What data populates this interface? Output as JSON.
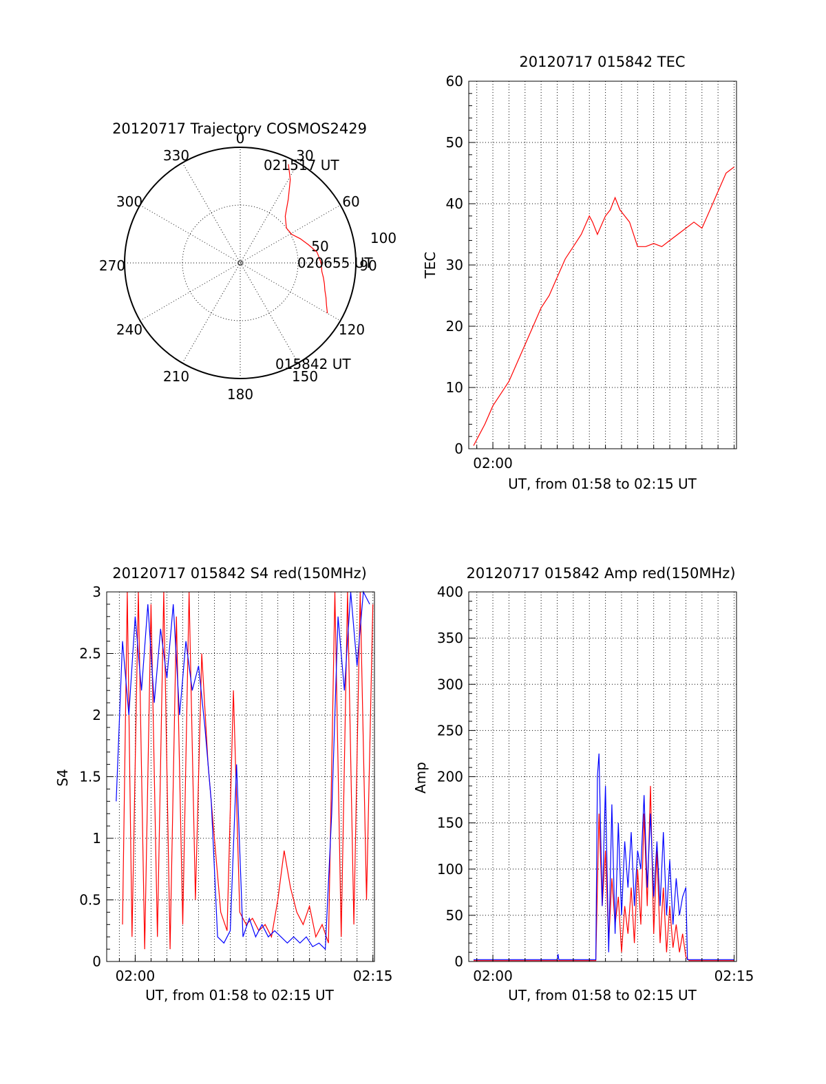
{
  "chart_data": [
    {
      "type": "polar",
      "title": "20120717 Trajectory COSMOS2429",
      "azimuth_labels": [
        "0",
        "30",
        "60",
        "90",
        "120",
        "150",
        "180",
        "210",
        "240",
        "270",
        "300",
        "330"
      ],
      "radial_labels": [
        "50",
        "100"
      ],
      "series": [
        {
          "color": "#ff0000",
          "points": [
            [
              26,
              95
            ],
            [
              31,
              84
            ],
            [
              37,
              69
            ],
            [
              44,
              56
            ],
            [
              53,
              50
            ],
            [
              61,
              51
            ],
            [
              68,
              56
            ],
            [
              75,
              61
            ],
            [
              82,
              67
            ],
            [
              90,
              70
            ],
            [
              96,
              71
            ],
            [
              100,
              73
            ],
            [
              104,
              75
            ],
            [
              108,
              77
            ],
            [
              112,
              80
            ],
            [
              116,
              83
            ],
            [
              120,
              87
            ]
          ]
        }
      ],
      "annotations": [
        "021517 UT",
        "020655 UT",
        "015842 UT"
      ]
    },
    {
      "type": "line",
      "title": "20120717 015842 TEC",
      "xlabel": "UT, from 01:58 to 02:15 UT",
      "ylabel": "TEC",
      "xlim": [
        -1.5,
        15.15
      ],
      "ylim": [
        0,
        60
      ],
      "x_ticks": [
        {
          "x": 0,
          "label": "02:00"
        }
      ],
      "y_ticks": [
        "0",
        "10",
        "20",
        "30",
        "40",
        "50",
        "60"
      ],
      "series": [
        {
          "color": "#ff0000",
          "x": [
            -1.2,
            -0.9,
            -0.5,
            0,
            0.5,
            1,
            1.5,
            2,
            2.5,
            3,
            3.5,
            4,
            4.5,
            5,
            5.5,
            6,
            6.2,
            6.5,
            7,
            7.3,
            7.6,
            7.9,
            8.2,
            8.5,
            9,
            9.5,
            10,
            10.5,
            11,
            11.5,
            12,
            12.5,
            13,
            13.5,
            14,
            14.5,
            15
          ],
          "y": [
            0.5,
            2,
            4,
            7,
            9,
            11,
            14,
            17,
            20,
            23,
            25,
            28,
            31,
            33,
            35,
            38,
            37,
            35,
            38,
            39,
            41,
            39,
            38,
            37,
            33,
            33,
            33.5,
            33,
            34,
            35,
            36,
            37,
            36,
            39,
            42,
            45,
            46
          ]
        }
      ]
    },
    {
      "type": "line",
      "title": "20120717 015842 S4 red(150MHz)",
      "xlabel": "UT, from 01:58 to 02:15 UT",
      "ylabel": "S4",
      "xlim": [
        -1.8,
        15.1
      ],
      "ylim": [
        0,
        3
      ],
      "x_ticks": [
        {
          "x": 0,
          "label": "02:00"
        },
        {
          "x": 15,
          "label": "02:15"
        }
      ],
      "y_ticks": [
        "0",
        "0.5",
        "1",
        "1.5",
        "2",
        "2.5",
        "3"
      ],
      "series": [
        {
          "color": "#ff0000",
          "x": [
            -0.8,
            -0.5,
            -0.2,
            0.2,
            0.6,
            1.0,
            1.4,
            1.8,
            2.2,
            2.6,
            3.0,
            3.4,
            3.8,
            4.2,
            4.6,
            5.0,
            5.4,
            5.8,
            6.2,
            6.6,
            7.0,
            7.4,
            7.8,
            8.2,
            8.6,
            9.0,
            9.4,
            9.8,
            10.2,
            10.6,
            11.0,
            11.4,
            11.8,
            12.2,
            12.6,
            13.0,
            13.4,
            13.8,
            14.2,
            14.6,
            15.0
          ],
          "y": [
            0.3,
            3,
            0.2,
            3,
            0.1,
            2.9,
            0.2,
            3,
            0.1,
            2.8,
            0.3,
            3,
            0.5,
            2.5,
            1.6,
            1.0,
            0.4,
            0.25,
            2.2,
            0.4,
            0.3,
            0.35,
            0.25,
            0.3,
            0.2,
            0.5,
            0.9,
            0.6,
            0.4,
            0.3,
            0.45,
            0.2,
            0.3,
            0.15,
            3,
            0.2,
            3,
            0.3,
            3,
            0.5,
            2.9
          ]
        },
        {
          "color": "#0000ff",
          "x": [
            -1.2,
            -0.8,
            -0.4,
            0,
            0.4,
            0.8,
            1.2,
            1.6,
            2.0,
            2.4,
            2.8,
            3.2,
            3.6,
            4.0,
            4.4,
            4.8,
            5.2,
            5.6,
            6.0,
            6.4,
            6.8,
            7.2,
            7.6,
            8.0,
            8.4,
            8.8,
            9.2,
            9.6,
            10.0,
            10.4,
            10.8,
            11.2,
            11.6,
            12.0,
            12.4,
            12.8,
            13.2,
            13.6,
            14.0,
            14.4,
            14.8
          ],
          "y": [
            1.3,
            2.6,
            2.0,
            2.8,
            2.2,
            2.9,
            2.1,
            2.7,
            2.3,
            2.9,
            2.0,
            2.6,
            2.2,
            2.4,
            1.9,
            1.3,
            0.2,
            0.15,
            0.25,
            1.6,
            0.2,
            0.35,
            0.2,
            0.3,
            0.2,
            0.25,
            0.2,
            0.15,
            0.2,
            0.15,
            0.2,
            0.12,
            0.15,
            0.1,
            1.2,
            2.8,
            2.2,
            3,
            2.4,
            3,
            2.9
          ]
        }
      ]
    },
    {
      "type": "line",
      "title": "20120717 015842 Amp red(150MHz)",
      "xlabel": "UT, from 01:58 to 02:15 UT",
      "ylabel": "Amp",
      "xlim": [
        -1.5,
        15.15
      ],
      "ylim": [
        0,
        400
      ],
      "x_ticks": [
        {
          "x": 0,
          "label": "02:00"
        },
        {
          "x": 15,
          "label": "02:15"
        }
      ],
      "y_ticks": [
        "0",
        "50",
        "100",
        "150",
        "200",
        "250",
        "300",
        "350",
        "400"
      ],
      "series": [
        {
          "color": "#ff0000",
          "x": [
            -1.2,
            6.4,
            6.6,
            6.8,
            7.0,
            7.2,
            7.4,
            7.6,
            7.8,
            8.0,
            8.2,
            8.4,
            8.6,
            8.8,
            9.0,
            9.2,
            9.4,
            9.6,
            9.8,
            10.0,
            10.2,
            10.4,
            10.6,
            10.8,
            11.0,
            11.2,
            11.4,
            11.6,
            11.8,
            12.0,
            12.2,
            15.0
          ],
          "y": [
            1,
            1,
            160,
            60,
            120,
            20,
            90,
            40,
            70,
            10,
            60,
            30,
            80,
            20,
            100,
            40,
            160,
            60,
            190,
            30,
            120,
            20,
            80,
            10,
            60,
            15,
            40,
            10,
            30,
            5,
            1,
            1
          ]
        },
        {
          "color": "#0000ff",
          "x": [
            -1.2,
            4.0,
            4.05,
            4.1,
            6.4,
            6.5,
            6.6,
            6.8,
            7.0,
            7.2,
            7.4,
            7.6,
            7.8,
            8.0,
            8.2,
            8.4,
            8.6,
            8.8,
            9.0,
            9.2,
            9.4,
            9.6,
            9.8,
            10.0,
            10.2,
            10.4,
            10.6,
            10.8,
            11.0,
            11.2,
            11.4,
            11.6,
            11.8,
            12.0,
            12.1,
            15.0
          ],
          "y": [
            2,
            2,
            8,
            2,
            2,
            200,
            225,
            60,
            190,
            10,
            170,
            30,
            150,
            50,
            130,
            80,
            140,
            60,
            120,
            100,
            180,
            80,
            160,
            70,
            130,
            60,
            140,
            50,
            110,
            40,
            90,
            50,
            70,
            80,
            2,
            2
          ]
        }
      ]
    }
  ],
  "polar_labels": {
    "az": [
      "0",
      "30",
      "60",
      "90",
      "120",
      "150",
      "180",
      "210",
      "240",
      "270",
      "300",
      "330"
    ],
    "r50": "50",
    "r100": "100",
    "times": [
      "021517 UT",
      "020655 UT",
      "015842 UT"
    ]
  }
}
